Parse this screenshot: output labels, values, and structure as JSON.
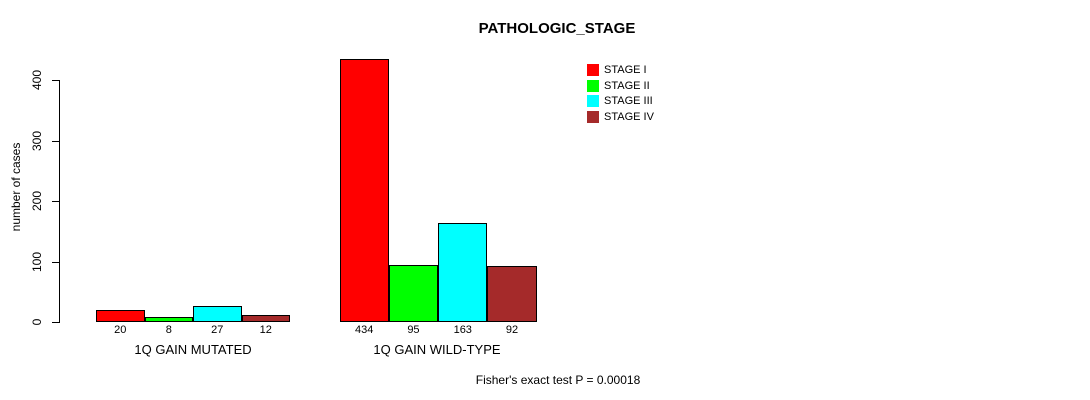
{
  "chart_data": {
    "type": "bar",
    "title": "PATHOLOGIC_STAGE",
    "ylabel": "number of cases",
    "xlabel": "",
    "categories": [
      "1Q GAIN MUTATED",
      "1Q GAIN WILD-TYPE"
    ],
    "series": [
      {
        "name": "STAGE I",
        "color": "#ff0000",
        "values": [
          20,
          434
        ]
      },
      {
        "name": "STAGE II",
        "color": "#00ff00",
        "values": [
          8,
          95
        ]
      },
      {
        "name": "STAGE III",
        "color": "#00ffff",
        "values": [
          27,
          163
        ]
      },
      {
        "name": "STAGE IV",
        "color": "#a52a2a",
        "values": [
          12,
          92
        ]
      }
    ],
    "bar_value_labels": [
      "20",
      "8",
      "27",
      "12",
      "434",
      "95",
      "163",
      "92"
    ],
    "yticks": [
      0,
      100,
      200,
      300,
      400
    ],
    "ylim": [
      0,
      445
    ],
    "grid": false,
    "legend_position": "top-right",
    "annotation": "Fisher's exact test P = 0.00018"
  }
}
